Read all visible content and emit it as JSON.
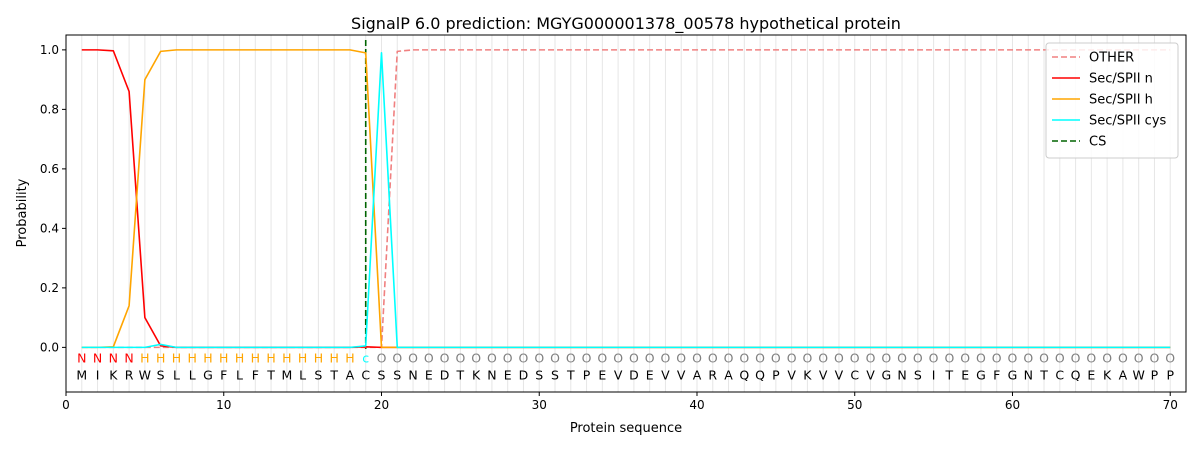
{
  "chart_data": {
    "type": "line",
    "title": "SignalP 6.0 prediction: MGYG000001378_00578 hypothetical protein",
    "xlabel": "Protein sequence",
    "ylabel": "Probability",
    "xlim": [
      0,
      71
    ],
    "ylim": [
      -0.15,
      1.05
    ],
    "x_ticks": [
      0,
      10,
      20,
      30,
      40,
      50,
      60,
      70
    ],
    "y_ticks": [
      0.0,
      0.2,
      0.4,
      0.6,
      0.8,
      1.0
    ],
    "x_tick_labels": [
      "0",
      "10",
      "20",
      "30",
      "40",
      "50",
      "60",
      "70"
    ],
    "y_tick_labels": [
      "0.0",
      "0.2",
      "0.4",
      "0.6",
      "0.8",
      "1.0"
    ],
    "legend_position": "top-right",
    "sequence": [
      "M",
      "I",
      "K",
      "R",
      "W",
      "S",
      "L",
      "L",
      "G",
      "F",
      "L",
      "F",
      "T",
      "M",
      "L",
      "S",
      "T",
      "A",
      "C",
      "S",
      "S",
      "N",
      "E",
      "D",
      "T",
      "K",
      "N",
      "E",
      "D",
      "S",
      "S",
      "T",
      "P",
      "E",
      "V",
      "D",
      "E",
      "V",
      "V",
      "A",
      "R",
      "A",
      "Q",
      "Q",
      "P",
      "V",
      "K",
      "V",
      "V",
      "C",
      "V",
      "G",
      "N",
      "S",
      "I",
      "T",
      "E",
      "G",
      "F",
      "G",
      "N",
      "T",
      "C",
      "Q",
      "E",
      "K",
      "A",
      "W",
      "P",
      "P"
    ],
    "labels": [
      "N",
      "N",
      "N",
      "N",
      "H",
      "H",
      "H",
      "H",
      "H",
      "H",
      "H",
      "H",
      "H",
      "H",
      "H",
      "H",
      "H",
      "H",
      "c",
      "O",
      "O",
      "O",
      "O",
      "O",
      "O",
      "O",
      "O",
      "O",
      "O",
      "O",
      "O",
      "O",
      "O",
      "O",
      "O",
      "O",
      "O",
      "O",
      "O",
      "O",
      "O",
      "O",
      "O",
      "O",
      "O",
      "O",
      "O",
      "O",
      "O",
      "O",
      "O",
      "O",
      "O",
      "O",
      "O",
      "O",
      "O",
      "O",
      "O",
      "O",
      "O",
      "O",
      "O",
      "O",
      "O",
      "O",
      "O",
      "O",
      "O",
      "O"
    ],
    "label_colors": {
      "N": "#ff0000",
      "H": "#ffa500",
      "c": "#00ffff",
      "O": "#808080"
    },
    "cleavage_site": 19,
    "series": [
      {
        "name": "OTHER",
        "color": "#f08080",
        "dash": "dashed",
        "values": [
          0,
          0,
          0,
          0,
          0,
          0,
          0,
          0,
          0,
          0,
          0,
          0,
          0,
          0,
          0,
          0,
          0,
          0,
          0,
          0,
          0.995,
          1,
          1,
          1,
          1,
          1,
          1,
          1,
          1,
          1,
          1,
          1,
          1,
          1,
          1,
          1,
          1,
          1,
          1,
          1,
          1,
          1,
          1,
          1,
          1,
          1,
          1,
          1,
          1,
          1,
          1,
          1,
          1,
          1,
          1,
          1,
          1,
          1,
          1,
          1,
          1,
          1,
          1,
          1,
          1,
          1,
          1,
          1,
          1,
          1
        ]
      },
      {
        "name": "Sec/SPII n",
        "color": "#ff0000",
        "dash": "solid",
        "values": [
          1.0,
          1.0,
          0.997,
          0.86,
          0.1,
          0.005,
          0,
          0,
          0,
          0,
          0,
          0,
          0,
          0,
          0,
          0,
          0,
          0,
          0.002,
          0,
          0,
          0,
          0,
          0,
          0,
          0,
          0,
          0,
          0,
          0,
          0,
          0,
          0,
          0,
          0,
          0,
          0,
          0,
          0,
          0,
          0,
          0,
          0,
          0,
          0,
          0,
          0,
          0,
          0,
          0,
          0,
          0,
          0,
          0,
          0,
          0,
          0,
          0,
          0,
          0,
          0,
          0,
          0,
          0,
          0,
          0,
          0,
          0,
          0,
          0
        ]
      },
      {
        "name": "Sec/SPII h",
        "color": "#ffa500",
        "dash": "solid",
        "values": [
          0,
          0,
          0.002,
          0.14,
          0.9,
          0.995,
          1.0,
          1.0,
          1.0,
          1.0,
          1.0,
          1.0,
          1.0,
          1.0,
          1.0,
          1.0,
          1.0,
          1.0,
          0.99,
          0,
          0,
          0,
          0,
          0,
          0,
          0,
          0,
          0,
          0,
          0,
          0,
          0,
          0,
          0,
          0,
          0,
          0,
          0,
          0,
          0,
          0,
          0,
          0,
          0,
          0,
          0,
          0,
          0,
          0,
          0,
          0,
          0,
          0,
          0,
          0,
          0,
          0,
          0,
          0,
          0,
          0,
          0,
          0,
          0,
          0,
          0,
          0,
          0,
          0,
          0
        ]
      },
      {
        "name": "Sec/SPII cys",
        "color": "#00ffff",
        "dash": "solid",
        "values": [
          0,
          0,
          0,
          0,
          0,
          0.01,
          0,
          0,
          0,
          0,
          0,
          0,
          0,
          0,
          0,
          0,
          0,
          0,
          0.005,
          0.99,
          0,
          0,
          0,
          0,
          0,
          0,
          0,
          0,
          0,
          0,
          0,
          0,
          0,
          0,
          0,
          0,
          0,
          0,
          0,
          0,
          0,
          0,
          0,
          0,
          0,
          0,
          0,
          0,
          0,
          0,
          0,
          0,
          0,
          0,
          0,
          0,
          0,
          0,
          0,
          0,
          0,
          0,
          0,
          0,
          0,
          0,
          0,
          0,
          0,
          0
        ]
      }
    ],
    "cs_legend": {
      "name": "CS",
      "color": "#006400",
      "dash": "dashed"
    }
  }
}
